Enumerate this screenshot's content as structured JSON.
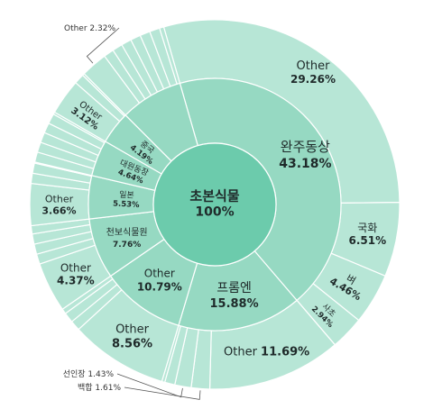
{
  "chart_data": {
    "type": "sunburst",
    "title": "",
    "root": {
      "name": "초본식물",
      "value": 100
    },
    "level1": [
      {
        "name": "완주동상",
        "value": 43.18
      },
      {
        "name": "프롬엔",
        "value": 15.88
      },
      {
        "name": "Other",
        "value": 10.79
      },
      {
        "name": "천보식물원",
        "value": 7.76
      },
      {
        "name": "일본",
        "value": 5.53
      },
      {
        "name": "대원동장",
        "value": 4.64
      },
      {
        "name": "중국",
        "value": 4.19
      },
      {
        "name": "(unlabeled)",
        "value": 8.03
      }
    ],
    "level2_labeled": [
      {
        "name": "Other",
        "value": 29.26,
        "parent": "완주동상"
      },
      {
        "name": "국화",
        "value": 6.51,
        "parent": "완주동상"
      },
      {
        "name": "벼",
        "value": 4.46,
        "parent": "완주동상"
      },
      {
        "name": "사초",
        "value": 2.94,
        "parent": "완주동상"
      },
      {
        "name": "Other",
        "value": 11.69,
        "parent": "프롬엔"
      },
      {
        "name": "백합",
        "value": 1.61,
        "parent": "프롬엔"
      },
      {
        "name": "선인장",
        "value": 1.43,
        "parent": "프롬엔"
      },
      {
        "name": "Other",
        "value": 8.56,
        "parent": "Other"
      },
      {
        "name": "Other",
        "value": 4.37,
        "parent": "천보식물원"
      },
      {
        "name": "Other",
        "value": 3.66,
        "parent": "일본"
      },
      {
        "name": "Other",
        "value": 3.12,
        "parent": "중국"
      },
      {
        "name": "Other",
        "value": 2.32,
        "parent": "(unlabeled)"
      }
    ],
    "external_labels": [
      {
        "text": "Other  2.32%"
      },
      {
        "text": "선인장  1.43%"
      },
      {
        "text": "백합  1.61%"
      }
    ],
    "colors": {
      "center": "#6ccbac",
      "ring1": "#96d9c2",
      "ring2": "#b7e6d6",
      "text": "#1f2a2a",
      "stroke": "#ffffff"
    }
  }
}
